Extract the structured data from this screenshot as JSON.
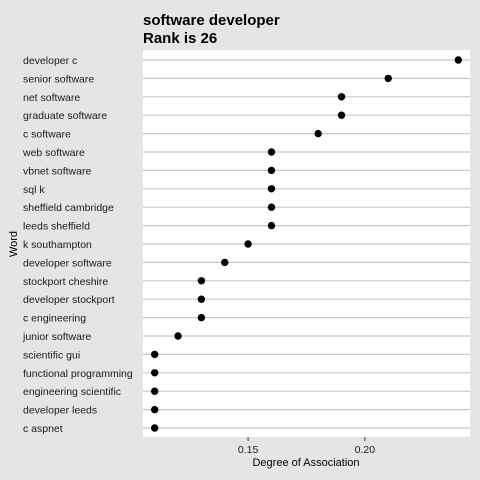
{
  "colors": {
    "background": "#e5e5e5",
    "panel": "#ffffff",
    "gridline": "#c8c8c8",
    "point": "#000000",
    "text": "#000000",
    "label": "#1a1a1a"
  },
  "chart_data": {
    "type": "dot",
    "title": "software developer",
    "subtitle": "Rank is 26",
    "xlabel": "Degree of Association",
    "ylabel": "Word",
    "xlim": [
      0.105,
      0.245
    ],
    "xticks": [
      0.15,
      0.2
    ],
    "xtick_labels": [
      "0.15",
      "0.20"
    ],
    "grid": "horizontal",
    "points": [
      {
        "label": "developer c",
        "value": 0.24
      },
      {
        "label": "senior software",
        "value": 0.21
      },
      {
        "label": "net software",
        "value": 0.19
      },
      {
        "label": "graduate software",
        "value": 0.19
      },
      {
        "label": "c software",
        "value": 0.18
      },
      {
        "label": "web software",
        "value": 0.16
      },
      {
        "label": "vbnet software",
        "value": 0.16
      },
      {
        "label": "sql k",
        "value": 0.16
      },
      {
        "label": "sheffield cambridge",
        "value": 0.16
      },
      {
        "label": "leeds sheffield",
        "value": 0.16
      },
      {
        "label": "k southampton",
        "value": 0.15
      },
      {
        "label": "developer software",
        "value": 0.14
      },
      {
        "label": "stockport cheshire",
        "value": 0.13
      },
      {
        "label": "developer stockport",
        "value": 0.13
      },
      {
        "label": "c engineering",
        "value": 0.13
      },
      {
        "label": "junior software",
        "value": 0.12
      },
      {
        "label": "scientific gui",
        "value": 0.11
      },
      {
        "label": "functional programming",
        "value": 0.11
      },
      {
        "label": "engineering scientific",
        "value": 0.11
      },
      {
        "label": "developer leeds",
        "value": 0.11
      },
      {
        "label": "c aspnet",
        "value": 0.11
      }
    ]
  }
}
